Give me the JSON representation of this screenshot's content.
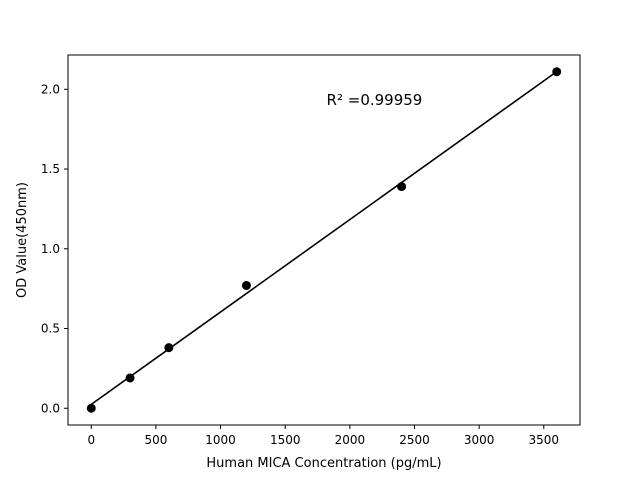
{
  "chart_data": {
    "type": "scatter",
    "title": "",
    "xlabel": "Human MICA Concentration (pg/mL)",
    "ylabel": "OD Value(450nm)",
    "annotation": "R² =0.99959",
    "x": [
      0,
      300,
      600,
      1200,
      2400,
      3600
    ],
    "y": [
      0.0,
      0.19,
      0.38,
      0.77,
      1.39,
      2.11
    ],
    "fit_line": true,
    "xticks": [
      0,
      500,
      1000,
      1500,
      2000,
      2500,
      3000,
      3500
    ],
    "ytick_labels": [
      "0.0",
      "0.5",
      "1.0",
      "1.5",
      "2.0"
    ],
    "ytick_values": [
      0.0,
      0.5,
      1.0,
      1.5,
      2.0
    ],
    "xlim": [
      -180,
      3780
    ],
    "ylim": [
      -0.105,
      2.215
    ],
    "grid": false,
    "legend": "none",
    "marker_color": "#000000",
    "line_color": "#000000",
    "background": "#ffffff"
  }
}
